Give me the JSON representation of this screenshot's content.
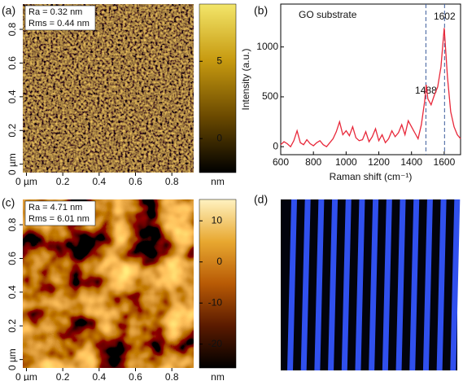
{
  "chart_data": [
    {
      "type": "image-map",
      "label": "(a)",
      "annotations": [
        "Ra = 0.32 nm",
        "Rms = 0.44 nm"
      ],
      "xticks": [
        {
          "value": 0,
          "label": "0 µm"
        },
        0.2,
        0.4,
        0.6,
        0.8
      ],
      "xlim": [
        -0.02,
        0.92
      ],
      "yticks": [
        {
          "value": 0,
          "label": "0 µm"
        },
        0.2,
        0.4,
        0.6,
        0.8
      ],
      "ylim": [
        -0.05,
        0.95
      ],
      "colorbar": {
        "lim": [
          -2.2,
          8.7
        ],
        "ticks": [
          0,
          5
        ],
        "unit": "nm",
        "colors": [
          "#000000",
          "#6b4a00",
          "#c79a10",
          "#f3e66a"
        ]
      }
    },
    {
      "type": "line",
      "label": "(b)",
      "xlabel": "Raman shift (cm⁻¹)",
      "ylabel": "Intensity (a.u.)",
      "annotations": [
        "GO substrate",
        "1488",
        "1602"
      ],
      "vlines": [
        1488,
        1602
      ],
      "xlim": [
        600,
        1700
      ],
      "xticks": [
        600,
        800,
        1000,
        1200,
        1400,
        1600
      ],
      "ylim": [
        -80,
        1430
      ],
      "yticks": [
        0,
        500,
        1000
      ],
      "x": [
        600,
        620,
        640,
        660,
        680,
        700,
        720,
        740,
        760,
        780,
        800,
        820,
        840,
        860,
        880,
        900,
        920,
        940,
        960,
        980,
        1000,
        1020,
        1040,
        1060,
        1080,
        1100,
        1120,
        1140,
        1160,
        1180,
        1200,
        1220,
        1240,
        1260,
        1280,
        1300,
        1320,
        1340,
        1360,
        1380,
        1400,
        1420,
        1440,
        1460,
        1480,
        1490,
        1500,
        1520,
        1540,
        1560,
        1580,
        1600,
        1620,
        1640,
        1660,
        1680,
        1700
      ],
      "series": [
        {
          "color": "#e8283a",
          "values": [
            20,
            50,
            30,
            0,
            60,
            160,
            40,
            20,
            70,
            30,
            10,
            40,
            60,
            20,
            0,
            40,
            80,
            150,
            250,
            120,
            160,
            110,
            200,
            90,
            60,
            70,
            150,
            50,
            100,
            180,
            60,
            120,
            40,
            80,
            160,
            100,
            140,
            220,
            120,
            260,
            200,
            140,
            80,
            220,
            450,
            620,
            480,
            420,
            520,
            600,
            800,
            1190,
            700,
            350,
            200,
            120,
            80
          ]
        }
      ]
    },
    {
      "type": "image-map",
      "label": "(c)",
      "annotations": [
        "Ra = 4.71 nm",
        "Rms = 6.01 nm"
      ],
      "xticks": [
        {
          "value": 0,
          "label": "0 µm"
        },
        0.2,
        0.4,
        0.6,
        0.8
      ],
      "xlim": [
        -0.02,
        0.92
      ],
      "yticks": [
        {
          "value": 0,
          "label": "0 µm"
        },
        0.2,
        0.4,
        0.6,
        0.8
      ],
      "ylim": [
        -0.05,
        0.95
      ],
      "colorbar": {
        "lim": [
          -25.8,
          15.2
        ],
        "ticks": [
          10,
          0,
          -10,
          -20
        ],
        "unit": "nm",
        "colors": [
          "#000000",
          "#5a1a00",
          "#b85a05",
          "#e8a830",
          "#fff2c0"
        ]
      }
    },
    {
      "type": "image",
      "label": "(d)"
    }
  ]
}
